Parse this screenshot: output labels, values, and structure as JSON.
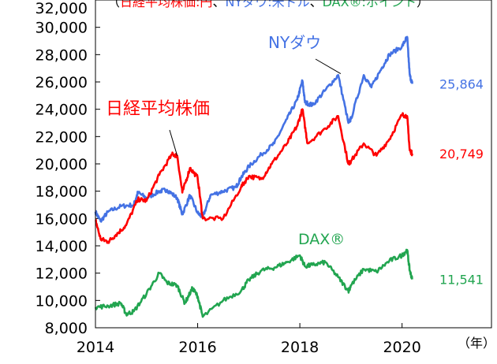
{
  "chart_data": {
    "type": "line",
    "title": "（日経平均株価:円、NYダウ:米ドル、DAX®:ポイント）",
    "title_parts": [
      {
        "text": "（",
        "color": "#000000"
      },
      {
        "text": "日経平均株価:円",
        "color": "#ff0000"
      },
      {
        "text": "、",
        "color": "#000000"
      },
      {
        "text": "NYダウ:米ドル",
        "color": "#4472e4"
      },
      {
        "text": "、",
        "color": "#000000"
      },
      {
        "text": "DAX®:ポイント",
        "color": "#22a550"
      },
      {
        "text": "）",
        "color": "#000000"
      }
    ],
    "xlabel": "（年）",
    "ylabel": "",
    "xlim": [
      2014.0,
      2021.75
    ],
    "ylim": [
      8000,
      32000
    ],
    "x_ticks": [
      2014,
      2016,
      2018,
      2020
    ],
    "x_tick_labels": [
      "2014",
      "2016",
      "2018",
      "2020"
    ],
    "y_ticks": [
      8000,
      10000,
      12000,
      14000,
      16000,
      18000,
      20000,
      22000,
      24000,
      26000,
      28000,
      30000,
      32000
    ],
    "y_tick_labels": [
      "8,000",
      "10,000",
      "12,000",
      "14,000",
      "16,000",
      "18,000",
      "20,000",
      "22,000",
      "24,000",
      "26,000",
      "28,000",
      "30,000",
      "32,000"
    ],
    "grid": false,
    "series": [
      {
        "name": "NYダウ",
        "color": "#4472e4",
        "end_value_label": "25,864",
        "x": [
          2014.0,
          2014.1,
          2014.25,
          2014.5,
          2014.75,
          2014.83,
          2015.0,
          2015.25,
          2015.4,
          2015.6,
          2015.7,
          2015.85,
          2016.0,
          2016.1,
          2016.25,
          2016.5,
          2016.75,
          2016.85,
          2017.0,
          2017.25,
          2017.5,
          2017.75,
          2017.95,
          2018.05,
          2018.1,
          2018.25,
          2018.5,
          2018.75,
          2018.95,
          2019.0,
          2019.25,
          2019.4,
          2019.6,
          2019.75,
          2020.0,
          2020.1,
          2020.15,
          2020.2
        ],
        "y": [
          16500,
          15800,
          16500,
          16900,
          17000,
          17900,
          17500,
          18000,
          18100,
          17500,
          16300,
          17700,
          16400,
          16100,
          17700,
          18000,
          18300,
          19000,
          19800,
          20700,
          21500,
          23300,
          24700,
          26100,
          24500,
          24300,
          25400,
          26500,
          23000,
          23300,
          26500,
          25600,
          27000,
          28000,
          28600,
          29300,
          26500,
          25864
        ]
      },
      {
        "name": "日経平均株価",
        "color": "#ff0000",
        "end_value_label": "20,749",
        "x": [
          2014.0,
          2014.1,
          2014.25,
          2014.4,
          2014.6,
          2014.83,
          2015.0,
          2015.25,
          2015.5,
          2015.6,
          2015.7,
          2015.85,
          2016.0,
          2016.1,
          2016.5,
          2016.85,
          2017.0,
          2017.25,
          2017.45,
          2017.75,
          2017.95,
          2018.05,
          2018.15,
          2018.5,
          2018.75,
          2018.95,
          2019.0,
          2019.25,
          2019.5,
          2019.75,
          2020.0,
          2020.1,
          2020.15,
          2020.2
        ],
        "y": [
          15900,
          14500,
          14300,
          14800,
          15500,
          17400,
          17300,
          19200,
          20700,
          20600,
          17900,
          19700,
          19000,
          16000,
          16000,
          18300,
          19100,
          18900,
          20000,
          21500,
          22800,
          24000,
          21500,
          22600,
          23500,
          20000,
          20200,
          21500,
          20600,
          21800,
          23600,
          23500,
          21000,
          20749
        ]
      },
      {
        "name": "DAX®",
        "color": "#22a550",
        "end_value_label": "11,541",
        "x": [
          2014.0,
          2014.25,
          2014.5,
          2014.6,
          2014.75,
          2015.0,
          2015.25,
          2015.4,
          2015.6,
          2015.75,
          2015.9,
          2016.0,
          2016.1,
          2016.5,
          2016.85,
          2017.0,
          2017.25,
          2017.5,
          2017.75,
          2018.0,
          2018.1,
          2018.25,
          2018.5,
          2018.75,
          2018.95,
          2019.0,
          2019.25,
          2019.5,
          2019.75,
          2020.0,
          2020.1,
          2020.15,
          2020.2
        ],
        "y": [
          9500,
          9600,
          9800,
          9000,
          9200,
          10500,
          12000,
          11300,
          11100,
          9800,
          10900,
          10300,
          8800,
          10000,
          10700,
          11500,
          12200,
          12400,
          12800,
          13300,
          12500,
          12600,
          12800,
          11700,
          10700,
          11100,
          12300,
          12100,
          12900,
          13300,
          13700,
          12200,
          11541
        ]
      }
    ],
    "annotations": [
      {
        "text": "NYダウ",
        "color": "#4472e4",
        "series": "NYダウ",
        "points_to": [
          2018.8,
          26600
        ]
      },
      {
        "text": "日経平均株価",
        "color": "#ff0000",
        "series": "日経平均株価",
        "points_to": [
          2015.6,
          20600
        ]
      },
      {
        "text": "DAX®",
        "color": "#22a550",
        "series": "DAX®"
      }
    ]
  }
}
